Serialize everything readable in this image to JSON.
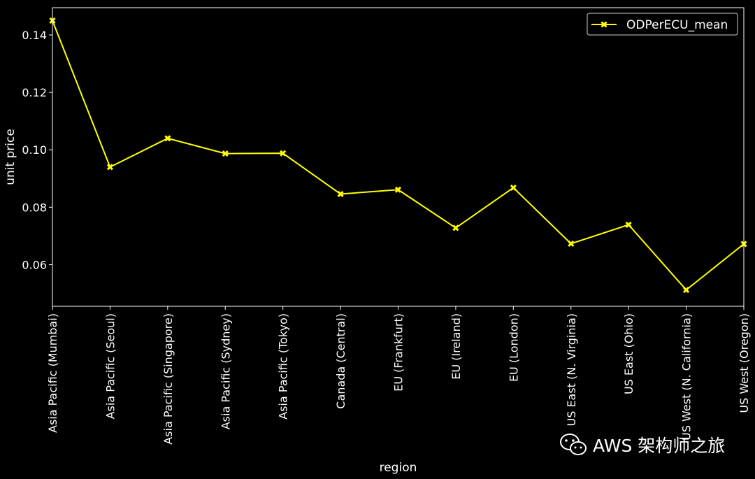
{
  "colors": {
    "background": "#000000",
    "series": "#ffff00",
    "axes": "#ffffff"
  },
  "watermark": {
    "text": "AWS 架构师之旅",
    "icon": "wechat-icon"
  },
  "chart_data": {
    "type": "line",
    "title": "",
    "xlabel": "region",
    "ylabel": "unit price",
    "categories": [
      "Asia Pacific (Mumbai)",
      "Asia Pacific (Seoul)",
      "Asia Pacific (Singapore)",
      "Asia Pacific (Sydney)",
      "Asia Pacific (Tokyo)",
      "Canada (Central)",
      "EU (Frankfurt)",
      "EU (Ireland)",
      "EU (London)",
      "US East (N. Virginia)",
      "US East (Ohio)",
      "US West (N. California)",
      "US West (Oregon)"
    ],
    "series": [
      {
        "name": "ODPerECU_mean",
        "values": [
          0.145,
          0.094,
          0.104,
          0.0987,
          0.0988,
          0.0846,
          0.0861,
          0.0728,
          0.0868,
          0.0673,
          0.0739,
          0.0512,
          0.0672
        ]
      }
    ],
    "yticks": [
      "0.06",
      "0.08",
      "0.10",
      "0.12",
      "0.14"
    ],
    "ylim": [
      0.0455,
      0.1495
    ],
    "grid": false,
    "legend": "top-right",
    "marker": "x"
  }
}
